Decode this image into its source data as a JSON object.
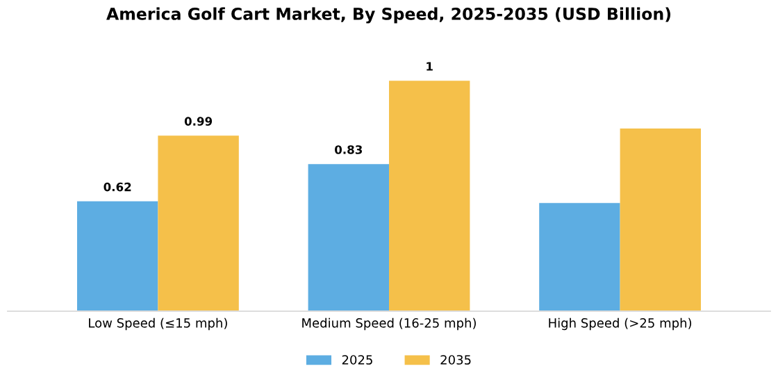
{
  "chart_data": {
    "type": "bar",
    "title": "America Golf Cart Market, By Speed, 2025-2035 (USD Billion)",
    "categories": [
      "Low Speed (≤15 mph)",
      "Medium Speed (16-25 mph)",
      "High Speed (>25 mph)"
    ],
    "series": [
      {
        "name": "2025",
        "color": "#5dade2",
        "values": [
          0.62,
          0.83,
          0.61
        ],
        "value_labels": [
          "0.62",
          "0.83",
          null
        ]
      },
      {
        "name": "2035",
        "color": "#f5c04a",
        "values": [
          0.99,
          1.3,
          1.03
        ],
        "value_labels": [
          "0.99",
          "1",
          null
        ]
      }
    ],
    "legend": "bottom",
    "grid": false,
    "tick_labels": "x"
  }
}
